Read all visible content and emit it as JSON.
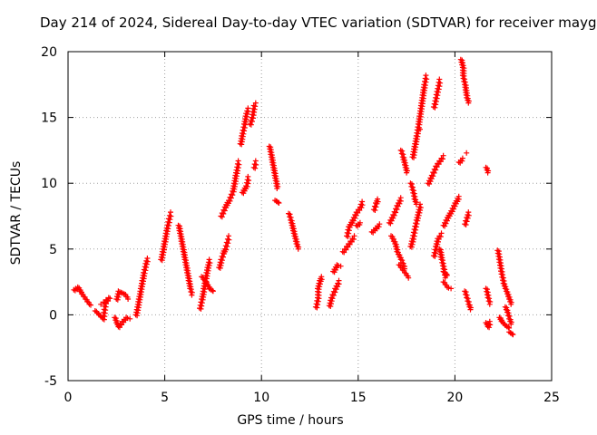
{
  "chart_data": {
    "type": "scatter",
    "title": "Day 214 of 2024, Sidereal Day-to-day VTEC variation (SDTVAR) for receiver mayg",
    "xlabel": "GPS time / hours",
    "ylabel": "SDTVAR / TECUs",
    "xlim": [
      0,
      25
    ],
    "ylim": [
      -5,
      20
    ],
    "xticks": [
      "0",
      "5",
      "10",
      "15",
      "20",
      "25"
    ],
    "yticks": [
      "-5",
      "0",
      "5",
      "10",
      "15",
      "20"
    ],
    "grid": true,
    "marker": "+",
    "color": "#ff0000",
    "segments": [
      [
        [
          0.3,
          1.9
        ],
        [
          0.5,
          2.1
        ],
        [
          0.7,
          1.6
        ],
        [
          0.9,
          1.2
        ],
        [
          1.1,
          0.8
        ],
        [
          1.0,
          1.0
        ]
      ],
      [
        [
          1.4,
          0.3
        ],
        [
          1.6,
          0.0
        ],
        [
          1.8,
          -0.3
        ],
        [
          1.9,
          0.9
        ],
        [
          2.1,
          1.3
        ],
        [
          1.7,
          0.8
        ]
      ],
      [
        [
          2.4,
          -0.2
        ],
        [
          2.5,
          -0.6
        ],
        [
          2.6,
          -0.9
        ],
        [
          2.8,
          -0.5
        ],
        [
          3.0,
          -0.2
        ],
        [
          3.2,
          -0.3
        ]
      ],
      [
        [
          2.5,
          1.2
        ],
        [
          2.6,
          1.8
        ],
        [
          2.9,
          1.6
        ],
        [
          3.1,
          1.2
        ]
      ],
      [
        [
          3.5,
          0.0
        ],
        [
          3.6,
          0.8
        ],
        [
          3.7,
          1.6
        ],
        [
          3.8,
          2.4
        ],
        [
          3.9,
          3.2
        ],
        [
          4.0,
          3.9
        ],
        [
          4.1,
          4.3
        ]
      ],
      [
        [
          4.8,
          4.2
        ],
        [
          4.9,
          5.0
        ],
        [
          5.0,
          5.8
        ],
        [
          5.1,
          6.6
        ],
        [
          5.2,
          7.3
        ],
        [
          5.3,
          7.8
        ]
      ],
      [
        [
          5.7,
          6.8
        ],
        [
          5.8,
          6.0
        ],
        [
          5.9,
          5.2
        ],
        [
          6.0,
          4.4
        ],
        [
          6.1,
          3.6
        ],
        [
          6.2,
          2.8
        ],
        [
          6.3,
          2.0
        ],
        [
          6.4,
          1.5
        ]
      ],
      [
        [
          6.8,
          0.5
        ],
        [
          6.9,
          1.2
        ],
        [
          7.0,
          2.0
        ],
        [
          7.1,
          2.8
        ],
        [
          7.2,
          3.6
        ],
        [
          7.3,
          4.2
        ]
      ],
      [
        [
          6.9,
          2.9
        ],
        [
          7.1,
          2.5
        ],
        [
          7.3,
          2.0
        ],
        [
          7.5,
          1.8
        ]
      ],
      [
        [
          7.8,
          3.6
        ],
        [
          7.9,
          4.2
        ],
        [
          8.0,
          4.7
        ],
        [
          8.1,
          5.0
        ],
        [
          8.2,
          5.5
        ],
        [
          8.3,
          6.0
        ]
      ],
      [
        [
          7.9,
          7.5
        ],
        [
          8.1,
          8.2
        ],
        [
          8.3,
          8.7
        ],
        [
          8.5,
          9.4
        ],
        [
          8.6,
          10.2
        ],
        [
          8.7,
          11.0
        ],
        [
          8.8,
          11.7
        ]
      ],
      [
        [
          8.9,
          13.0
        ],
        [
          9.0,
          13.8
        ],
        [
          9.1,
          14.5
        ],
        [
          9.2,
          15.3
        ],
        [
          9.3,
          15.7
        ]
      ],
      [
        [
          9.0,
          9.3
        ],
        [
          9.2,
          9.8
        ],
        [
          9.3,
          10.5
        ]
      ],
      [
        [
          9.4,
          14.5
        ],
        [
          9.5,
          15.0
        ],
        [
          9.6,
          15.9
        ],
        [
          9.7,
          16.1
        ]
      ],
      [
        [
          9.6,
          11.2
        ],
        [
          9.7,
          11.7
        ]
      ],
      [
        [
          10.4,
          12.8
        ],
        [
          10.5,
          12.0
        ],
        [
          10.6,
          11.2
        ],
        [
          10.7,
          10.4
        ],
        [
          10.8,
          9.6
        ]
      ],
      [
        [
          10.7,
          8.7
        ],
        [
          10.9,
          8.5
        ]
      ],
      [
        [
          11.4,
          7.7
        ],
        [
          11.5,
          7.2
        ],
        [
          11.6,
          6.6
        ],
        [
          11.7,
          6.0
        ],
        [
          11.8,
          5.4
        ],
        [
          11.9,
          5.0
        ]
      ],
      [
        [
          12.8,
          0.6
        ],
        [
          12.9,
          1.3
        ],
        [
          12.9,
          2.0
        ],
        [
          13.0,
          2.6
        ],
        [
          13.1,
          2.9
        ]
      ],
      [
        [
          13.5,
          0.7
        ],
        [
          13.6,
          1.3
        ],
        [
          13.8,
          2.0
        ],
        [
          14.0,
          2.6
        ]
      ],
      [
        [
          13.7,
          3.3
        ],
        [
          13.9,
          3.8
        ],
        [
          14.1,
          3.7
        ]
      ],
      [
        [
          14.2,
          4.8
        ],
        [
          14.4,
          5.2
        ],
        [
          14.6,
          5.6
        ],
        [
          14.8,
          6.0
        ]
      ],
      [
        [
          14.4,
          6.0
        ],
        [
          14.5,
          6.7
        ],
        [
          14.7,
          7.2
        ],
        [
          14.9,
          7.8
        ],
        [
          15.1,
          8.2
        ],
        [
          15.2,
          8.6
        ]
      ],
      [
        [
          14.9,
          6.8
        ],
        [
          15.1,
          7.0
        ]
      ],
      [
        [
          15.7,
          6.3
        ],
        [
          15.9,
          6.6
        ],
        [
          16.1,
          6.9
        ]
      ],
      [
        [
          15.8,
          8.0
        ],
        [
          15.9,
          8.5
        ],
        [
          16.0,
          8.8
        ]
      ],
      [
        [
          16.6,
          7.0
        ],
        [
          16.8,
          7.6
        ],
        [
          17.0,
          8.3
        ],
        [
          17.2,
          8.9
        ]
      ],
      [
        [
          16.7,
          6.0
        ],
        [
          16.9,
          5.4
        ],
        [
          17.0,
          4.8
        ],
        [
          17.2,
          4.2
        ],
        [
          17.4,
          3.5
        ]
      ],
      [
        [
          17.1,
          3.8
        ],
        [
          17.4,
          3.2
        ],
        [
          17.6,
          2.8
        ]
      ],
      [
        [
          17.2,
          12.5
        ],
        [
          17.3,
          12.0
        ],
        [
          17.4,
          11.4
        ],
        [
          17.5,
          10.8
        ]
      ],
      [
        [
          17.7,
          10.0
        ],
        [
          17.8,
          9.5
        ],
        [
          17.9,
          8.8
        ],
        [
          18.0,
          8.4
        ]
      ],
      [
        [
          17.7,
          5.2
        ],
        [
          17.8,
          5.8
        ],
        [
          17.9,
          6.5
        ],
        [
          18.0,
          7.2
        ],
        [
          18.1,
          7.8
        ],
        [
          18.2,
          8.4
        ]
      ],
      [
        [
          17.8,
          12.0
        ],
        [
          17.9,
          12.8
        ],
        [
          18.0,
          13.6
        ],
        [
          18.1,
          14.5
        ],
        [
          18.2,
          15.5
        ],
        [
          18.3,
          16.5
        ],
        [
          18.4,
          17.5
        ],
        [
          18.5,
          18.2
        ]
      ],
      [
        [
          18.2,
          14.1
        ]
      ],
      [
        [
          18.6,
          10.0
        ],
        [
          18.8,
          10.6
        ],
        [
          19.0,
          11.3
        ],
        [
          19.2,
          11.7
        ],
        [
          19.4,
          12.1
        ]
      ],
      [
        [
          18.9,
          15.8
        ],
        [
          19.0,
          16.5
        ],
        [
          19.1,
          17.2
        ],
        [
          19.2,
          17.9
        ]
      ],
      [
        [
          18.9,
          4.5
        ],
        [
          19.0,
          5.2
        ],
        [
          19.1,
          5.8
        ],
        [
          19.3,
          6.2
        ]
      ],
      [
        [
          19.2,
          5.0
        ],
        [
          19.3,
          4.2
        ],
        [
          19.4,
          3.5
        ],
        [
          19.5,
          2.8
        ]
      ],
      [
        [
          19.4,
          3.3
        ],
        [
          19.6,
          3.0
        ]
      ],
      [
        [
          19.4,
          2.5
        ],
        [
          19.6,
          2.1
        ],
        [
          19.8,
          2.0
        ]
      ],
      [
        [
          19.4,
          6.8
        ],
        [
          19.6,
          7.4
        ],
        [
          19.8,
          7.9
        ],
        [
          20.0,
          8.5
        ],
        [
          20.2,
          9.0
        ]
      ],
      [
        [
          20.2,
          11.6
        ],
        [
          20.4,
          11.9
        ]
      ],
      [
        [
          20.3,
          19.4
        ],
        [
          20.4,
          18.8
        ],
        [
          20.4,
          18.2
        ],
        [
          20.5,
          17.5
        ],
        [
          20.6,
          16.5
        ],
        [
          20.7,
          16.1
        ]
      ],
      [
        [
          20.5,
          6.9
        ],
        [
          20.6,
          7.4
        ],
        [
          20.7,
          7.8
        ]
      ],
      [
        [
          20.5,
          1.8
        ],
        [
          20.6,
          1.3
        ],
        [
          20.7,
          0.8
        ],
        [
          20.8,
          0.4
        ]
      ],
      [
        [
          20.6,
          12.3
        ]
      ],
      [
        [
          21.6,
          11.2
        ],
        [
          21.7,
          10.8
        ]
      ],
      [
        [
          21.6,
          2.0
        ],
        [
          21.7,
          1.3
        ],
        [
          21.8,
          0.8
        ]
      ],
      [
        [
          21.6,
          -0.6
        ],
        [
          21.7,
          -0.9
        ],
        [
          21.8,
          -0.5
        ]
      ],
      [
        [
          22.2,
          4.9
        ],
        [
          22.3,
          4.0
        ],
        [
          22.4,
          3.1
        ],
        [
          22.5,
          2.4
        ],
        [
          22.7,
          1.6
        ],
        [
          22.9,
          0.8
        ]
      ],
      [
        [
          22.3,
          -0.2
        ],
        [
          22.4,
          -0.5
        ],
        [
          22.6,
          -0.8
        ],
        [
          22.8,
          -1.0
        ]
      ],
      [
        [
          22.6,
          0.6
        ],
        [
          22.7,
          0.2
        ],
        [
          22.8,
          -0.3
        ],
        [
          22.9,
          -0.7
        ]
      ],
      [
        [
          22.8,
          -1.3
        ],
        [
          23.0,
          -1.5
        ]
      ]
    ]
  }
}
